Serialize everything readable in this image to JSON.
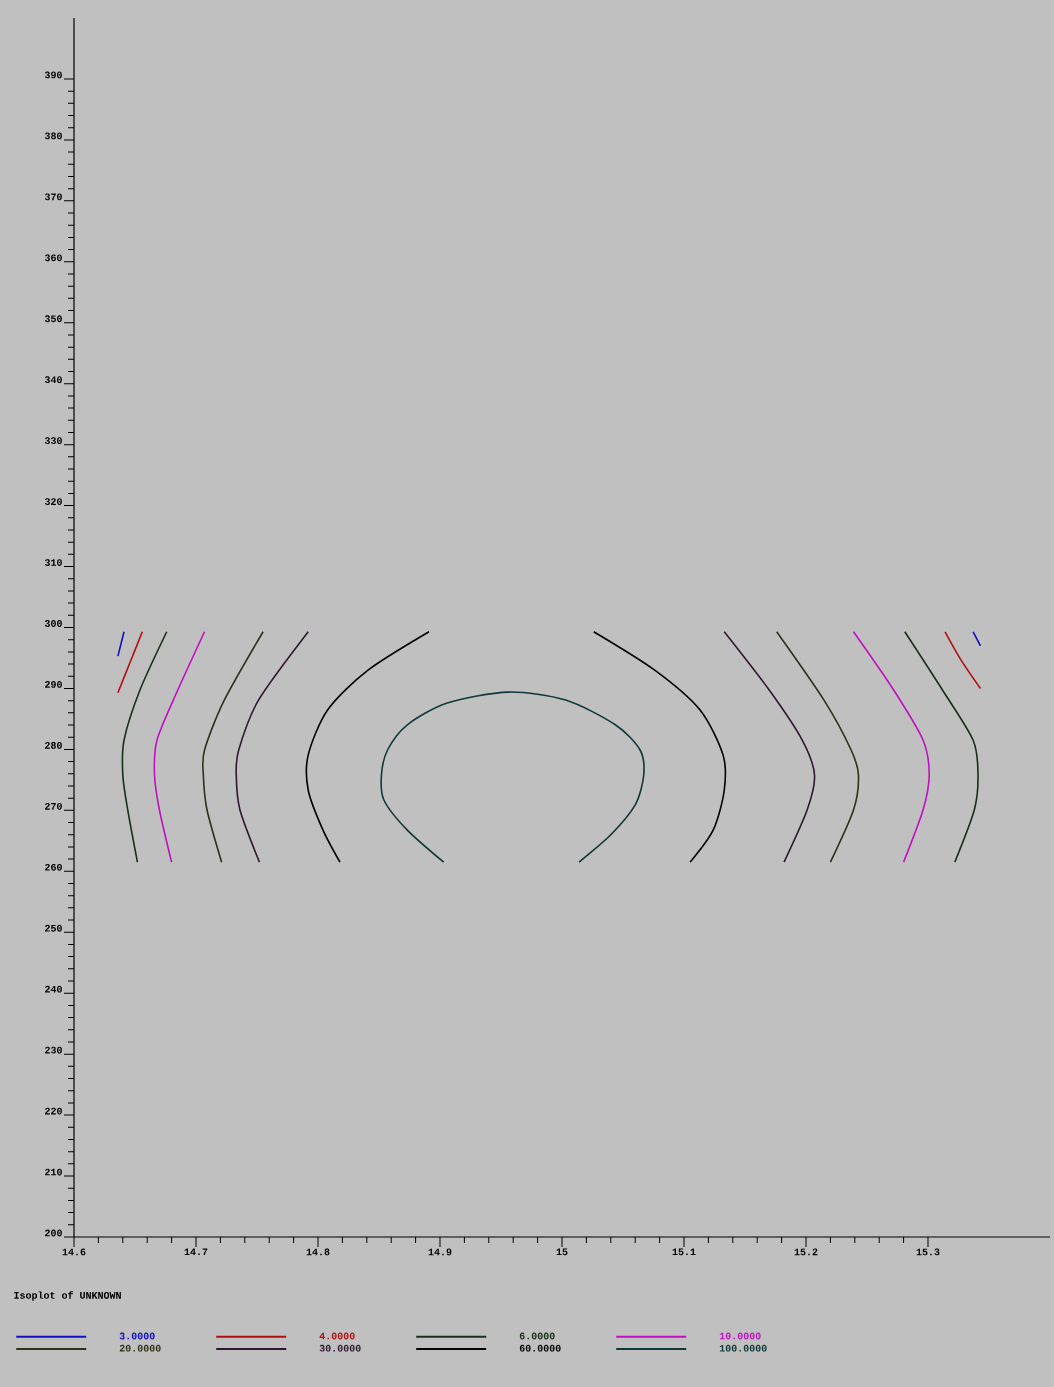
{
  "chart_data": {
    "type": "line",
    "title": "Isoplot of UNKNOWN",
    "xlim": [
      14.6,
      15.4
    ],
    "ylim": [
      200,
      400
    ],
    "xticks": [
      14.6,
      14.7,
      14.8,
      14.9,
      15,
      15.1,
      15.2,
      15.3
    ],
    "yticks": [
      200,
      210,
      220,
      230,
      240,
      250,
      260,
      270,
      280,
      290,
      300,
      310,
      320,
      330,
      340,
      350,
      360,
      370,
      380,
      390
    ],
    "legend": "bottom",
    "series": [
      {
        "name": "3.0000",
        "color": "#1010c0",
        "x": [
          14.641,
          14.636,
          null,
          15.337,
          15.343
        ],
        "values": [
          299.3,
          295.3,
          null,
          299.3,
          297.0
        ]
      },
      {
        "name": "4.0000",
        "color": "#b01010",
        "x": [
          14.656,
          14.646,
          14.636,
          null,
          15.314,
          15.327,
          15.343
        ],
        "values": [
          299.3,
          294.3,
          289.3,
          null,
          299.3,
          294.7,
          290.0
        ]
      },
      {
        "name": "6.0000",
        "color": "#183018",
        "x": [
          14.676,
          14.654,
          14.641,
          14.64,
          14.644,
          14.652,
          null,
          15.281,
          15.312,
          15.337,
          15.341,
          15.338,
          15.322
        ],
        "values": [
          299.3,
          289.7,
          281.5,
          275.8,
          270.1,
          261.5,
          null,
          299.3,
          289.7,
          281.5,
          275.8,
          270.1,
          261.5
        ]
      },
      {
        "name": "10.0000",
        "color": "#c010c0",
        "x": [
          14.707,
          14.685,
          14.668,
          14.666,
          14.67,
          14.68,
          null,
          15.239,
          15.272,
          15.296,
          15.301,
          15.296,
          15.28
        ],
        "values": [
          299.3,
          289.7,
          281.5,
          275.8,
          270.1,
          261.5,
          null,
          299.3,
          289.7,
          281.5,
          275.8,
          270.1,
          261.5
        ]
      },
      {
        "name": "20.0000",
        "color": "#303018",
        "x": [
          14.755,
          14.723,
          14.707,
          14.706,
          14.709,
          14.721,
          null,
          15.176,
          15.215,
          15.237,
          15.243,
          15.239,
          15.22
        ],
        "values": [
          299.3,
          288.0,
          279.9,
          275.8,
          270.1,
          261.5,
          null,
          299.3,
          288.0,
          279.9,
          275.8,
          270.1,
          261.5
        ]
      },
      {
        "name": "30.0000",
        "color": "#301830",
        "x": [
          14.792,
          14.751,
          14.735,
          14.733,
          14.736,
          14.752,
          null,
          15.133,
          15.17,
          15.197,
          15.207,
          15.201,
          15.182
        ],
        "values": [
          299.3,
          288.0,
          279.9,
          275.8,
          270.1,
          261.5,
          null,
          299.3,
          289.7,
          281.5,
          275.8,
          270.1,
          261.5
        ]
      },
      {
        "name": "60.0000",
        "color": "#000000",
        "x": [
          14.891,
          14.841,
          14.808,
          14.792,
          14.792,
          14.804,
          14.818,
          null,
          15.026,
          15.076,
          15.113,
          15.132,
          15.133,
          15.124,
          15.105
        ],
        "values": [
          299.3,
          293.0,
          286.5,
          279.1,
          273.3,
          266.8,
          261.5,
          null,
          299.3,
          293.0,
          286.5,
          279.1,
          273.3,
          266.8,
          261.5
        ]
      },
      {
        "name": "100.0000",
        "color": "#103838",
        "x": [
          14.903,
          14.873,
          14.854,
          14.852,
          14.857,
          14.873,
          14.906,
          14.956,
          15.003,
          15.044,
          15.064,
          15.067,
          15.06,
          15.04,
          15.014
        ],
        "values": [
          261.5,
          266.8,
          271.7,
          275.8,
          279.9,
          284.0,
          287.6,
          289.4,
          288.1,
          284.0,
          279.9,
          275.8,
          270.9,
          266.0,
          261.5
        ]
      }
    ]
  }
}
